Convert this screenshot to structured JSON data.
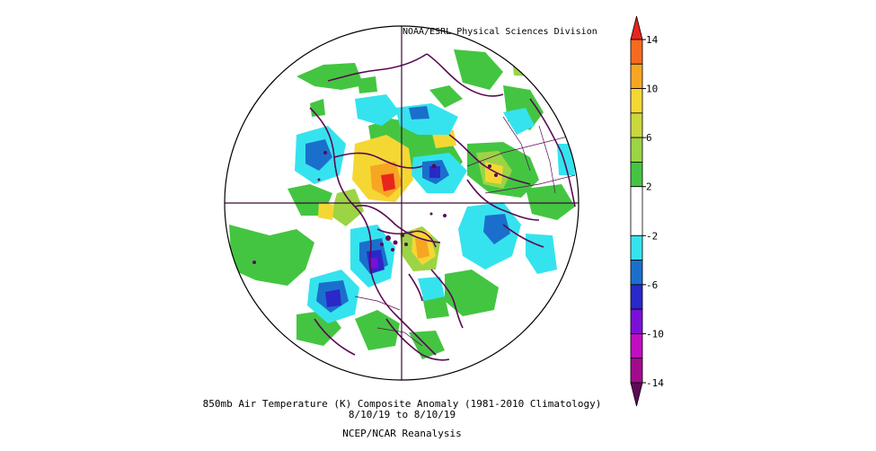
{
  "header": {
    "credit": "NOAA/ESRL Physical Sciences Division"
  },
  "caption": {
    "line1": "850mb Air Temperature (K) Composite Anomaly (1981-2010 Climatology)",
    "line2": "8/10/19  to 8/10/19",
    "line3": "NCEP/NCAR Reanalysis"
  },
  "colorbar": {
    "labels": [
      "14",
      "10",
      "6",
      "2",
      "-2",
      "-6",
      "-10",
      "-14"
    ],
    "levels": [
      {
        "lo": 14,
        "hi": 16,
        "color": "#e8261c"
      },
      {
        "lo": 12,
        "hi": 14,
        "color": "#f56a1e"
      },
      {
        "lo": 10,
        "hi": 12,
        "color": "#f7a623"
      },
      {
        "lo": 8,
        "hi": 10,
        "color": "#f5d733"
      },
      {
        "lo": 6,
        "hi": 8,
        "color": "#c9d83a"
      },
      {
        "lo": 4,
        "hi": 6,
        "color": "#9bd444"
      },
      {
        "lo": 2,
        "hi": 4,
        "color": "#44c541"
      },
      {
        "lo": -2,
        "hi": 2,
        "color": "#ffffff"
      },
      {
        "lo": -4,
        "hi": -2,
        "color": "#35e3ee"
      },
      {
        "lo": -6,
        "hi": -4,
        "color": "#1b6fcc"
      },
      {
        "lo": -8,
        "hi": -6,
        "color": "#2a28c8"
      },
      {
        "lo": -10,
        "hi": -8,
        "color": "#7a10d6"
      },
      {
        "lo": -12,
        "hi": -10,
        "color": "#c00ec0"
      },
      {
        "lo": -14,
        "hi": -12,
        "color": "#a20a8e"
      },
      {
        "lo": -16,
        "hi": -14,
        "color": "#5e0a55"
      }
    ]
  },
  "map": {
    "projection": "polar-stereographic-north",
    "coastline_color": "#5a0a55",
    "gridline_color": "#3a0a35"
  }
}
